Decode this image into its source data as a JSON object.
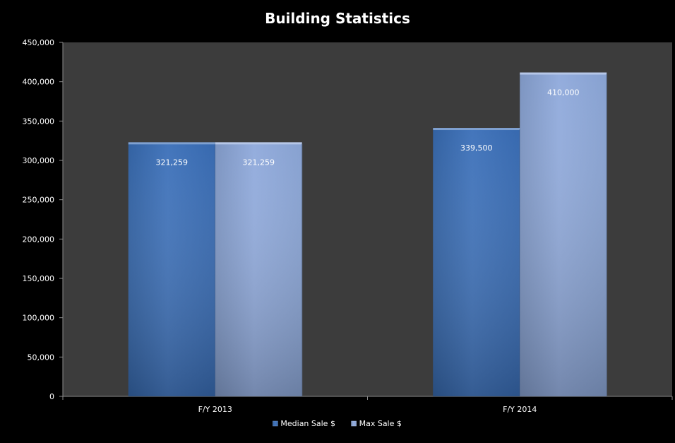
{
  "chart_data": {
    "type": "bar",
    "title": "Building Statistics",
    "xlabel": "",
    "ylabel": "",
    "categories": [
      "F/Y 2013",
      "F/Y 2014"
    ],
    "series": [
      {
        "name": "Median Sale $",
        "values": [
          321259,
          339500
        ],
        "value_labels": [
          "321,259",
          "339,500"
        ],
        "color": "#3a6fb8"
      },
      {
        "name": "Max Sale $",
        "values": [
          321259,
          410000
        ],
        "value_labels": [
          "321,259",
          "410,000"
        ],
        "color": "#8ea9db"
      }
    ],
    "ylim": [
      0,
      450000
    ],
    "yticks": [
      0,
      50000,
      100000,
      150000,
      200000,
      250000,
      300000,
      350000,
      400000,
      450000
    ],
    "ytick_labels": [
      "0",
      "50,000",
      "100,000",
      "150,000",
      "200,000",
      "250,000",
      "300,000",
      "350,000",
      "400,000",
      "450,000"
    ],
    "grid": false,
    "legend": "bottom",
    "background_color": "#000000",
    "plot_area_color": "#3c3c3c"
  }
}
